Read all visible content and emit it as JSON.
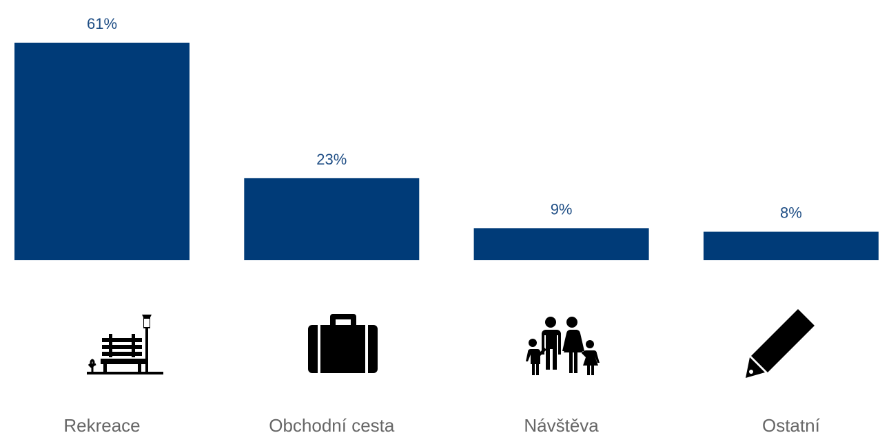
{
  "chart_data": {
    "type": "bar",
    "categories": [
      "Rekreace",
      "Obchodní cesta",
      "Návštěva",
      "Ostatní"
    ],
    "values": [
      61,
      23,
      9,
      8
    ],
    "value_labels": [
      "61%",
      "23%",
      "9%",
      "8%"
    ],
    "unit": "%",
    "ylim": [
      0,
      61
    ],
    "grid": false,
    "legend": "none",
    "bar_color": "#003B78",
    "label_color": "#1F4E85",
    "category_label_color": "#666666",
    "icons": [
      "park-bench-lamp-icon",
      "briefcase-icon",
      "family-icon",
      "pencil-icon"
    ]
  }
}
